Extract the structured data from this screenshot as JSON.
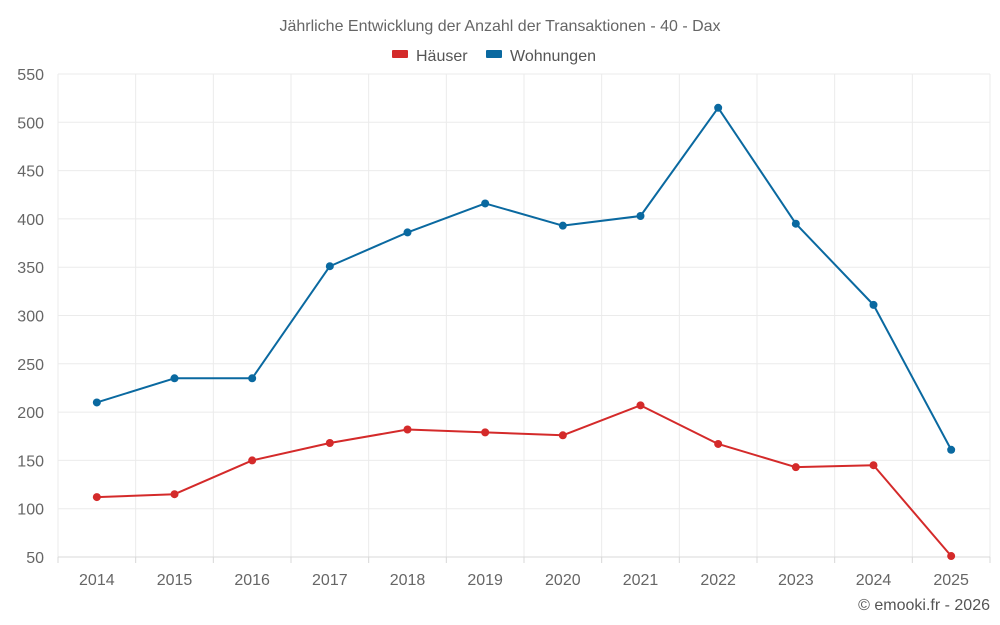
{
  "chart_data": {
    "type": "line",
    "title": "Jährliche Entwicklung der Anzahl der Transaktionen - 40 - Dax",
    "categories": [
      "2014",
      "2015",
      "2016",
      "2017",
      "2018",
      "2019",
      "2020",
      "2021",
      "2022",
      "2023",
      "2024",
      "2025"
    ],
    "series": [
      {
        "name": "Häuser",
        "color": "#d42a2a",
        "values": [
          112,
          115,
          150,
          168,
          182,
          179,
          176,
          207,
          167,
          143,
          145,
          51
        ]
      },
      {
        "name": "Wohnungen",
        "color": "#0a69a0",
        "values": [
          210,
          235,
          235,
          351,
          386,
          416,
          393,
          403,
          515,
          395,
          311,
          161
        ]
      }
    ],
    "yticks": [
      50,
      100,
      150,
      200,
      250,
      300,
      350,
      400,
      450,
      500,
      550
    ],
    "ylim": [
      50,
      550
    ],
    "xlabel": "",
    "ylabel": "",
    "grid": true,
    "legend_position": "top-center"
  },
  "credit": "© emooki.fr - 2026"
}
